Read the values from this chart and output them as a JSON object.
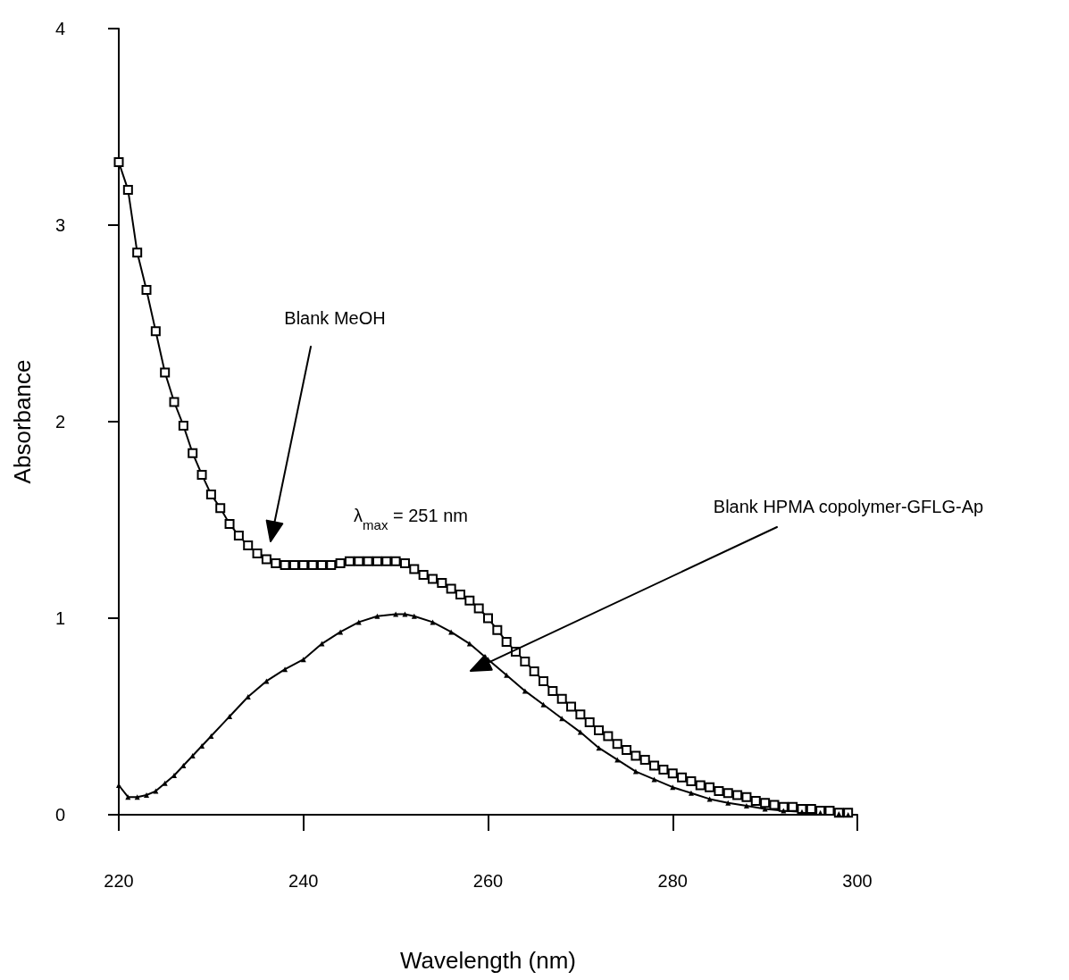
{
  "chart_data": {
    "type": "line",
    "xlabel": "Wavelength (nm)",
    "ylabel": "Absorbance",
    "xlim": [
      220,
      300
    ],
    "xticks": [
      220,
      240,
      260,
      280,
      300
    ],
    "ylim": [
      0,
      4
    ],
    "yticks": [
      0,
      1,
      2,
      3,
      4
    ],
    "grid": false,
    "line_style": "solid",
    "series": [
      {
        "color": "#000000",
        "marker": "square",
        "x": [
          220,
          221,
          222,
          223,
          224,
          225,
          226,
          227,
          228,
          229,
          230,
          231,
          232,
          233,
          234,
          235,
          236,
          237,
          238,
          239,
          240,
          241,
          242,
          243,
          244,
          245,
          246,
          247,
          248,
          249,
          250,
          251,
          252,
          253,
          254,
          255,
          256,
          257,
          258,
          259,
          260,
          261,
          262,
          263,
          264,
          265,
          266,
          267,
          268,
          269,
          270,
          271,
          272,
          273,
          274,
          275,
          276,
          277,
          278,
          279,
          280,
          281,
          282,
          283,
          284,
          285,
          286,
          287,
          288,
          289,
          290,
          291,
          292,
          293,
          294,
          295,
          296,
          297,
          298,
          299
        ],
        "values": [
          3.32,
          3.18,
          2.86,
          2.67,
          2.46,
          2.25,
          2.1,
          1.98,
          1.84,
          1.73,
          1.63,
          1.56,
          1.48,
          1.42,
          1.37,
          1.33,
          1.3,
          1.28,
          1.27,
          1.27,
          1.27,
          1.27,
          1.27,
          1.27,
          1.28,
          1.29,
          1.29,
          1.29,
          1.29,
          1.29,
          1.29,
          1.28,
          1.25,
          1.22,
          1.2,
          1.18,
          1.15,
          1.12,
          1.09,
          1.05,
          1.0,
          0.94,
          0.88,
          0.83,
          0.78,
          0.73,
          0.68,
          0.63,
          0.59,
          0.55,
          0.51,
          0.47,
          0.43,
          0.4,
          0.36,
          0.33,
          0.3,
          0.28,
          0.25,
          0.23,
          0.21,
          0.19,
          0.17,
          0.15,
          0.14,
          0.12,
          0.11,
          0.1,
          0.09,
          0.07,
          0.06,
          0.05,
          0.04,
          0.04,
          0.03,
          0.03,
          0.02,
          0.02,
          0.01,
          0.01
        ]
      },
      {
        "color": "#000000",
        "marker": "triangle",
        "x": [
          220,
          221,
          222,
          223,
          224,
          225,
          226,
          227,
          228,
          229,
          230,
          232,
          234,
          236,
          238,
          240,
          242,
          244,
          246,
          248,
          250,
          251,
          252,
          254,
          256,
          258,
          260,
          262,
          264,
          266,
          268,
          270,
          272,
          274,
          276,
          278,
          280,
          282,
          284,
          286,
          288,
          290,
          292,
          294,
          296,
          298,
          299
        ],
        "values": [
          0.15,
          0.09,
          0.09,
          0.1,
          0.12,
          0.16,
          0.2,
          0.25,
          0.3,
          0.35,
          0.4,
          0.5,
          0.6,
          0.68,
          0.74,
          0.79,
          0.87,
          0.93,
          0.98,
          1.01,
          1.02,
          1.02,
          1.01,
          0.98,
          0.93,
          0.87,
          0.79,
          0.71,
          0.63,
          0.56,
          0.49,
          0.42,
          0.34,
          0.28,
          0.22,
          0.18,
          0.14,
          0.11,
          0.08,
          0.06,
          0.045,
          0.03,
          0.02,
          0.015,
          0.01,
          0.005,
          0.0
        ]
      }
    ],
    "annotations": [
      "Blank MeOH",
      "λ$_{max}$ = 251 nm",
      "Blank HPMA copolymer-GFLG-Ap"
    ]
  }
}
